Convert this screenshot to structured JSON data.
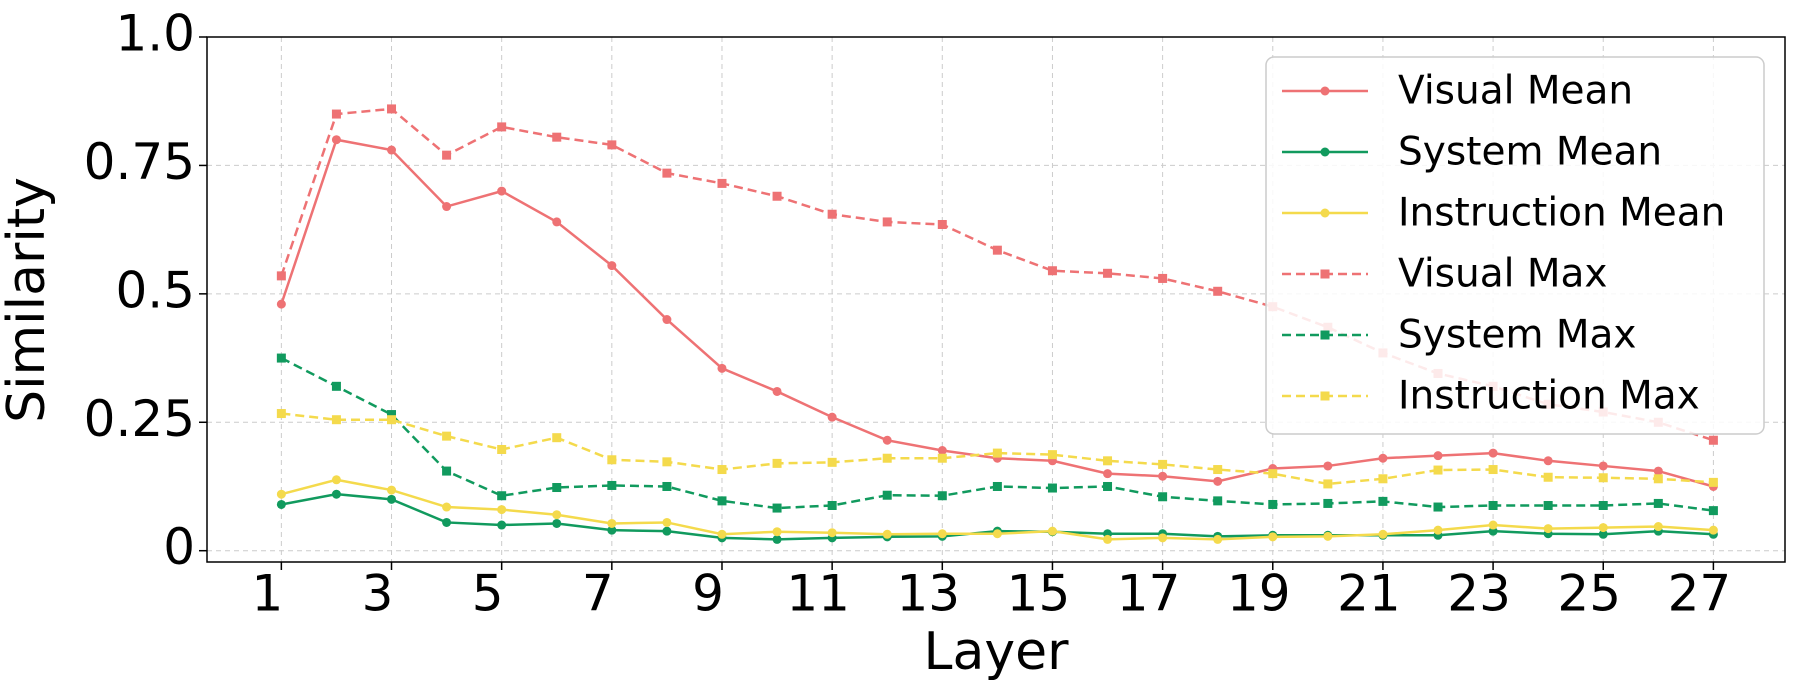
{
  "chart_data": {
    "type": "line",
    "xlabel": "Layer",
    "ylabel": "Similarity",
    "x": [
      1,
      2,
      3,
      4,
      5,
      6,
      7,
      8,
      9,
      10,
      11,
      12,
      13,
      14,
      15,
      16,
      17,
      18,
      19,
      20,
      21,
      22,
      23,
      24,
      25,
      26,
      27
    ],
    "xlim": [
      -0.35,
      28.3
    ],
    "xticks": [
      1,
      3,
      5,
      7,
      9,
      11,
      13,
      15,
      17,
      19,
      21,
      23,
      25,
      27
    ],
    "ylim": [
      -0.022,
      1.0
    ],
    "yticks": [
      0,
      0.25,
      0.5,
      0.75,
      {
        "value": 1.0,
        "label": "1.0"
      }
    ],
    "grid": true,
    "legend": "upper right",
    "series": [
      {
        "name": "Visual Mean",
        "color": "#ee7274",
        "linestyle": "solid",
        "marker": "circle",
        "values": [
          0.48,
          0.8,
          0.78,
          0.67,
          0.7,
          0.64,
          0.555,
          0.45,
          0.355,
          0.31,
          0.26,
          0.215,
          0.195,
          0.18,
          0.175,
          0.15,
          0.145,
          0.135,
          0.16,
          0.165,
          0.18,
          0.185,
          0.19,
          0.175,
          0.165,
          0.155,
          0.125
        ]
      },
      {
        "name": "System Mean",
        "color": "#119a5e",
        "linestyle": "solid",
        "marker": "circle",
        "values": [
          0.09,
          0.11,
          0.1,
          0.055,
          0.05,
          0.053,
          0.04,
          0.038,
          0.025,
          0.022,
          0.025,
          0.027,
          0.028,
          0.038,
          0.037,
          0.033,
          0.033,
          0.028,
          0.03,
          0.03,
          0.03,
          0.03,
          0.038,
          0.033,
          0.032,
          0.038,
          0.032
        ]
      },
      {
        "name": "Instruction Mean",
        "color": "#f4da4c",
        "linestyle": "solid",
        "marker": "circle",
        "values": [
          0.11,
          0.138,
          0.118,
          0.085,
          0.08,
          0.07,
          0.053,
          0.055,
          0.032,
          0.037,
          0.035,
          0.032,
          0.033,
          0.033,
          0.038,
          0.022,
          0.025,
          0.022,
          0.027,
          0.028,
          0.032,
          0.04,
          0.05,
          0.043,
          0.045,
          0.047,
          0.04
        ]
      },
      {
        "name": "Visual Max",
        "color": "#ee7274",
        "linestyle": "dashed",
        "marker": "square",
        "values": [
          0.535,
          0.85,
          0.86,
          0.77,
          0.825,
          0.805,
          0.79,
          0.735,
          0.715,
          0.69,
          0.655,
          0.64,
          0.635,
          0.585,
          0.545,
          0.54,
          0.53,
          0.505,
          0.475,
          0.435,
          0.385,
          0.345,
          0.32,
          0.285,
          0.27,
          0.25,
          0.215
        ]
      },
      {
        "name": "System Max",
        "color": "#119a5e",
        "linestyle": "dashed",
        "marker": "square",
        "values": [
          0.375,
          0.32,
          0.265,
          0.155,
          0.107,
          0.123,
          0.127,
          0.125,
          0.097,
          0.083,
          0.088,
          0.108,
          0.107,
          0.125,
          0.122,
          0.125,
          0.105,
          0.097,
          0.09,
          0.092,
          0.096,
          0.085,
          0.088,
          0.088,
          0.088,
          0.092,
          0.078
        ]
      },
      {
        "name": "Instruction Max",
        "color": "#f4da4c",
        "linestyle": "dashed",
        "marker": "square",
        "values": [
          0.267,
          0.255,
          0.255,
          0.223,
          0.197,
          0.22,
          0.177,
          0.173,
          0.158,
          0.17,
          0.172,
          0.18,
          0.18,
          0.19,
          0.187,
          0.175,
          0.168,
          0.158,
          0.15,
          0.13,
          0.14,
          0.157,
          0.158,
          0.143,
          0.142,
          0.14,
          0.133
        ]
      }
    ]
  }
}
